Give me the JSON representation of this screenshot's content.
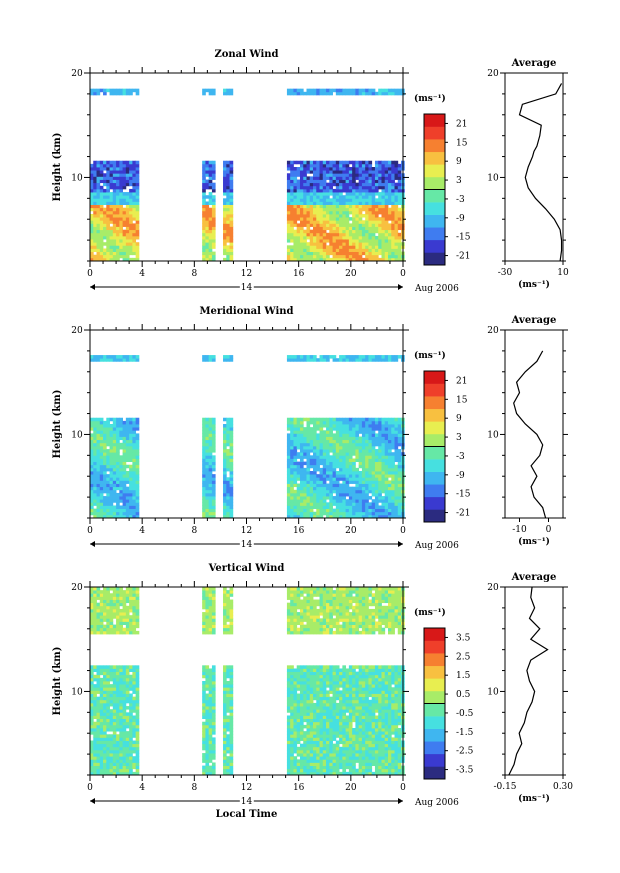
{
  "chart_data": [
    {
      "type": "heatmap",
      "title": "Zonal Wind",
      "ylabel": "Height (km)",
      "yticks": [
        "20",
        "10"
      ],
      "xticks": [
        "0",
        "4",
        "8",
        "12",
        "16",
        "20",
        "0"
      ],
      "date_label": "14",
      "month_label": "Aug 2006",
      "colorbar": {
        "unit": "(ms⁻¹)",
        "ticks": [
          "21",
          "15",
          "9",
          "3",
          "-3",
          "-9",
          "-15",
          "-21"
        ],
        "range": [
          -24,
          24
        ]
      },
      "ylim": [
        2,
        20
      ],
      "xlim": [
        0,
        24
      ],
      "data_columns": [
        [
          0,
          3.6
        ],
        [
          8.6,
          9.6
        ],
        [
          10.2,
          10.9
        ],
        [
          15.1,
          24
        ]
      ],
      "profile": {
        "title": "Average",
        "xticks": [
          "-30",
          "10"
        ],
        "xlim": [
          -30,
          10
        ],
        "yticks": [
          "20",
          "10"
        ],
        "unit": "(ms⁻¹)",
        "heights": [
          2,
          3,
          4,
          5,
          6,
          7,
          8,
          9,
          10,
          11,
          12,
          12.5,
          13,
          13.5,
          14,
          15,
          16,
          17,
          18,
          19
        ],
        "values": [
          8,
          9,
          9,
          8,
          4,
          -2,
          -9,
          -14,
          -16,
          -14,
          -11,
          -10,
          -8,
          -7,
          -6,
          -5,
          -20,
          -18,
          5,
          9
        ]
      }
    },
    {
      "type": "heatmap",
      "title": "Meridional Wind",
      "ylabel": "Height (km)",
      "yticks": [
        "20",
        "10"
      ],
      "xticks": [
        "0",
        "4",
        "8",
        "12",
        "16",
        "20",
        "0"
      ],
      "date_label": "14",
      "month_label": "Aug 2006",
      "colorbar": {
        "unit": "(ms⁻¹)",
        "ticks": [
          "21",
          "15",
          "9",
          "3",
          "-3",
          "-9",
          "-15",
          "-21"
        ],
        "range": [
          -24,
          24
        ]
      },
      "ylim": [
        2,
        20
      ],
      "xlim": [
        0,
        24
      ],
      "data_columns": [
        [
          0,
          3.6
        ],
        [
          8.6,
          9.6
        ],
        [
          10.2,
          10.9
        ],
        [
          15.1,
          24
        ]
      ],
      "profile": {
        "title": "Average",
        "xticks": [
          "-10",
          "0"
        ],
        "xlim": [
          -15,
          5
        ],
        "yticks": [
          "20",
          "10"
        ],
        "unit": "(ms⁻¹)",
        "heights": [
          2,
          3,
          4,
          5,
          6,
          7,
          8,
          9,
          10,
          11,
          12,
          13,
          14,
          15,
          16,
          17,
          18
        ],
        "values": [
          -1,
          -2,
          -5,
          -6,
          -4,
          -6,
          -3,
          -2,
          -4,
          -8,
          -11,
          -12,
          -10,
          -11,
          -8,
          -4,
          -2
        ]
      }
    },
    {
      "type": "heatmap",
      "title": "Vertical Wind",
      "ylabel": "Height (km)",
      "xlabel": "Local Time",
      "yticks": [
        "20",
        "10"
      ],
      "xticks": [
        "0",
        "4",
        "8",
        "12",
        "16",
        "20",
        "0"
      ],
      "date_label": "14",
      "month_label": "Aug 2006",
      "colorbar": {
        "unit": "(ms⁻¹)",
        "ticks": [
          "3.5",
          "2.5",
          "1.5",
          "0.5",
          "-0.5",
          "-1.5",
          "-2.5",
          "-3.5"
        ],
        "range": [
          -4,
          4
        ]
      },
      "ylim": [
        2,
        20
      ],
      "xlim": [
        0,
        24
      ],
      "data_columns": [
        [
          0,
          3.6
        ],
        [
          8.6,
          9.6
        ],
        [
          10.2,
          10.9
        ],
        [
          15.1,
          24
        ]
      ],
      "profile": {
        "title": "Average",
        "xticks": [
          "-0.15",
          "0.30"
        ],
        "xlim": [
          -0.15,
          0.3
        ],
        "yticks": [
          "20",
          "10"
        ],
        "unit": "(ms⁻¹)",
        "heights": [
          2,
          3,
          4,
          5,
          6,
          7,
          8,
          9,
          10,
          11,
          12,
          13,
          14,
          15,
          16,
          17,
          18,
          19,
          20
        ],
        "values": [
          -0.12,
          -0.08,
          -0.06,
          -0.02,
          -0.04,
          0.0,
          0.02,
          0.06,
          0.08,
          0.04,
          0.02,
          0.05,
          0.18,
          0.05,
          0.12,
          0.04,
          0.08,
          0.05,
          0.06
        ]
      }
    }
  ]
}
